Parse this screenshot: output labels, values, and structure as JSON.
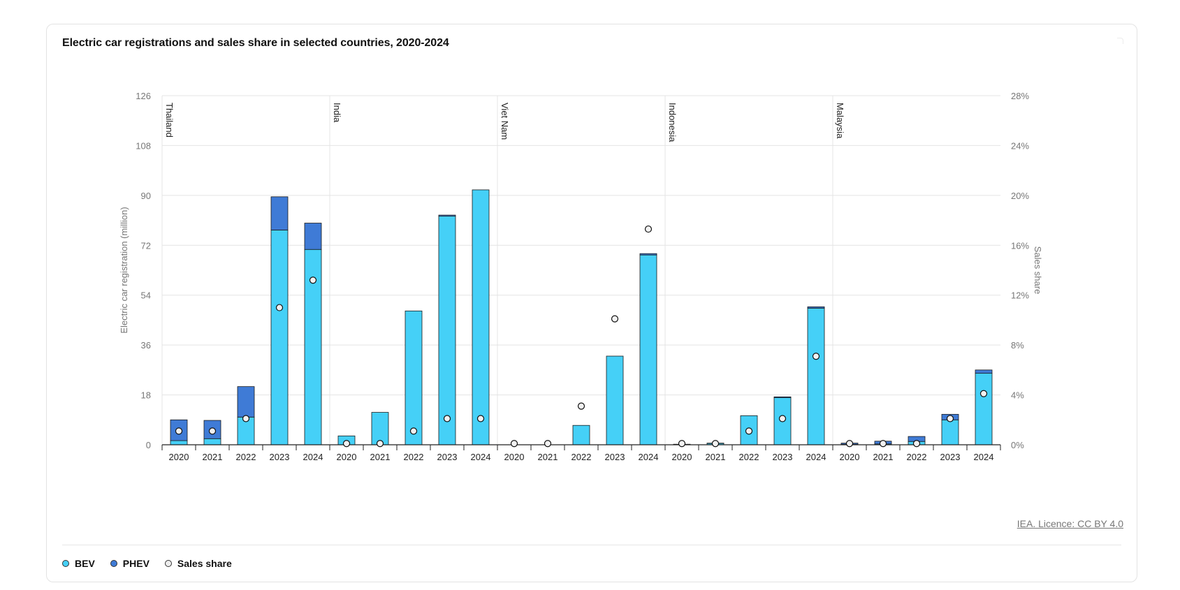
{
  "title": "Electric car registrations and sales share in selected countries, 2020-2024",
  "source": "IEA. Licence: CC BY 4.0",
  "colors": {
    "bev": "#45d0f7",
    "phev": "#3f7bd6",
    "share": "#f2f2f2",
    "grid": "#e4e4e4"
  },
  "legend": [
    {
      "label": "BEV",
      "color": "#45d0f7"
    },
    {
      "label": "PHEV",
      "color": "#3f7bd6"
    },
    {
      "label": "Sales share",
      "color": "#eeeeee"
    }
  ],
  "chart_data": {
    "type": "bar",
    "stacked": true,
    "ylabel": "Electric car registration (million)",
    "y2label": "Sales share",
    "ylim": [
      0,
      126
    ],
    "yticks": [
      0,
      18,
      36,
      54,
      72,
      90,
      108,
      126
    ],
    "y2lim": [
      0,
      28
    ],
    "y2ticks": [
      "0%",
      "4%",
      "8%",
      "12%",
      "16%",
      "20%",
      "24%",
      "28%"
    ],
    "grid": true,
    "legend_position": "bottom-left",
    "groups": [
      {
        "name": "Thailand",
        "years": [
          "2020",
          "2021",
          "2022",
          "2023",
          "2024"
        ],
        "bev": [
          1.5,
          2.2,
          10,
          77.5,
          70.5
        ],
        "phev": [
          7.5,
          6.6,
          11,
          12,
          9.5
        ],
        "share": [
          1.1,
          1.1,
          2.1,
          11,
          13.2
        ]
      },
      {
        "name": "India",
        "years": [
          "2020",
          "2021",
          "2022",
          "2023",
          "2024"
        ],
        "bev": [
          3.2,
          11.7,
          48.3,
          82.5,
          92
        ],
        "phev": [
          0,
          0,
          0,
          0.4,
          0
        ],
        "share": [
          0.1,
          0.1,
          1.1,
          2.1,
          2.1
        ]
      },
      {
        "name": "Viet Nam",
        "years": [
          "2020",
          "2021",
          "2022",
          "2023",
          "2024"
        ],
        "bev": [
          0,
          0,
          7,
          32,
          68.5
        ],
        "phev": [
          0,
          0,
          0,
          0,
          0.5
        ],
        "share": [
          0.1,
          0.1,
          3.1,
          10.1,
          17.3
        ]
      },
      {
        "name": "Indonesia",
        "years": [
          "2020",
          "2021",
          "2022",
          "2023",
          "2024"
        ],
        "bev": [
          0.1,
          0.5,
          10.5,
          17,
          49.3
        ],
        "phev": [
          0.1,
          0.1,
          0,
          0.3,
          0.5
        ],
        "share": [
          0.1,
          0.1,
          1.1,
          2.1,
          7.1
        ]
      },
      {
        "name": "Malaysia",
        "years": [
          "2020",
          "2021",
          "2022",
          "2023",
          "2024"
        ],
        "bev": [
          0.2,
          0.3,
          1.2,
          9,
          25.8
        ],
        "phev": [
          0.4,
          1,
          1.8,
          2,
          1.2
        ],
        "share": [
          0.1,
          0.1,
          0.1,
          2.1,
          4.1
        ]
      }
    ]
  }
}
